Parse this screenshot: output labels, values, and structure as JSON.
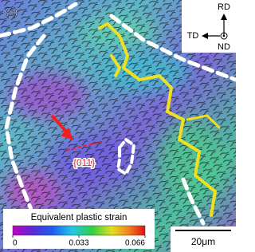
{
  "panel_label": "(c)",
  "orientation": {
    "up": "RD",
    "left": "TD",
    "normal": "ND"
  },
  "annotation": "{011}",
  "colorbar": {
    "title": "Equivalent plastic strain",
    "ticks": [
      0,
      0.033,
      0.066
    ]
  },
  "scale_bar": "20μm"
}
